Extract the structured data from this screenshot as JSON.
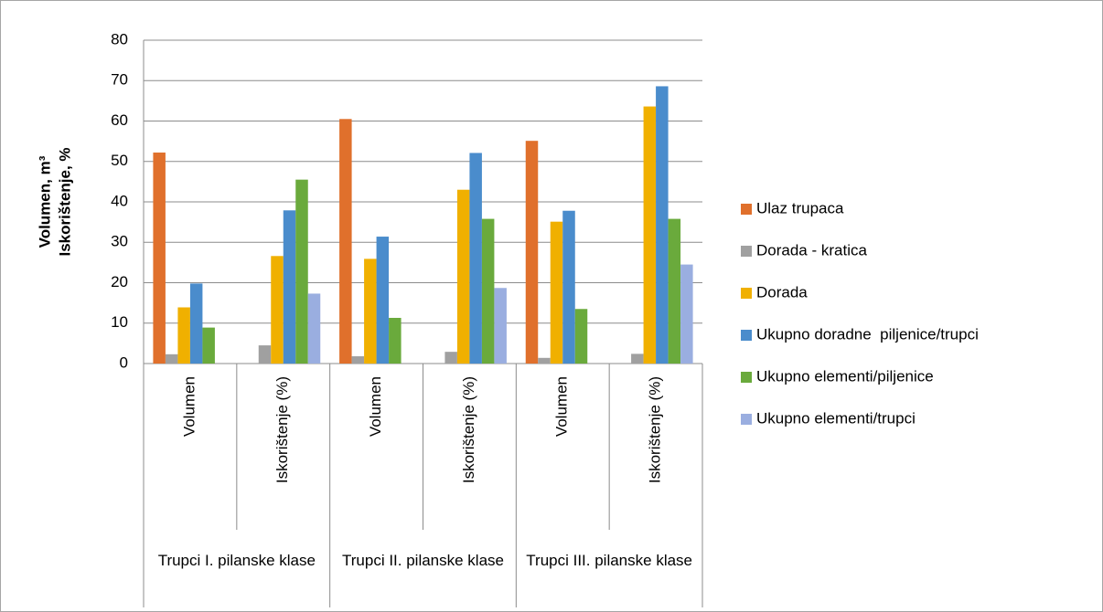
{
  "chart_data": {
    "type": "bar",
    "y_label": [
      "Volumen, m³",
      "Iskorištenje, %"
    ],
    "categories": [
      "Volumen",
      "Iskorištenje (%)",
      "Volumen",
      "Iskorištenje (%)",
      "Volumen",
      "Iskorištenje (%)"
    ],
    "groups": [
      "Trupci I. pilanske klase",
      "Trupci II. pilanske klase",
      "Trupci III. pilanske klase"
    ],
    "series": [
      {
        "name": "Ulaz trupaca",
        "color": "#e0702c",
        "values": [
          52.2,
          null,
          60.5,
          null,
          55.1,
          null
        ]
      },
      {
        "name": "Dorada - kratica",
        "color": "#a0a0a0",
        "values": [
          2.3,
          4.5,
          1.8,
          2.9,
          1.4,
          2.4
        ]
      },
      {
        "name": "Dorada",
        "color": "#f0b000",
        "values": [
          13.9,
          26.6,
          25.9,
          43.0,
          35.1,
          63.6
        ]
      },
      {
        "name": "Ukupno doradne  piljenice/trupci",
        "color": "#4a8ccc",
        "values": [
          19.8,
          37.9,
          31.4,
          52.1,
          37.8,
          68.6
        ]
      },
      {
        "name": "Ukupno elementi/piljenice",
        "color": "#6aaa3c",
        "values": [
          8.9,
          45.5,
          11.3,
          35.8,
          13.5,
          35.8
        ]
      },
      {
        "name": "Ukupno elementi/trupci",
        "color": "#9aaee0",
        "values": [
          null,
          17.3,
          null,
          18.7,
          null,
          24.5
        ]
      }
    ],
    "ylim": [
      0,
      80
    ],
    "yticks": [
      0,
      10,
      20,
      30,
      40,
      50,
      60,
      70,
      80
    ],
    "grid": true,
    "legend": "right"
  }
}
